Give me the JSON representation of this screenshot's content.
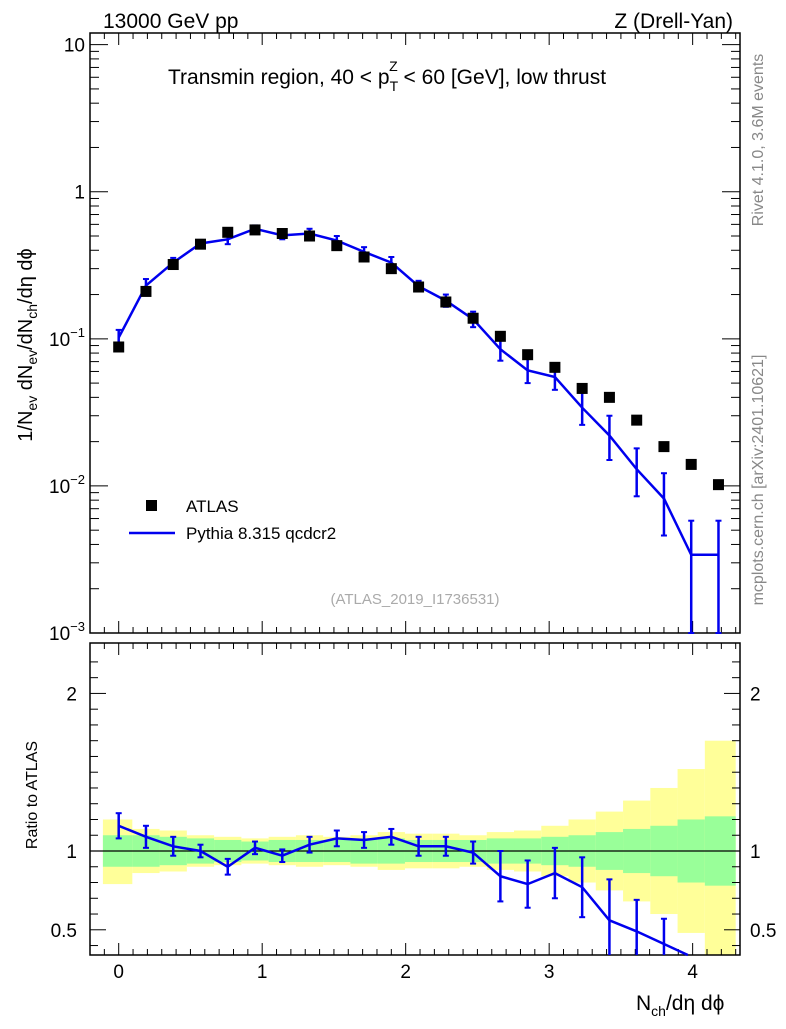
{
  "header": {
    "left": "13000 GeV pp",
    "right": "Z (Drell-Yan)"
  },
  "side_labels": {
    "rivet": "Rivet 4.1.0,  3.6M events",
    "mcplots": "mcplots.cern.ch [arXiv:2401.10621]"
  },
  "chart_data": [
    {
      "type": "scatter",
      "title_parts": {
        "pre": "Transmin region, 40 < p",
        "sub": "T",
        "sup": "Z",
        "post": " < 60 [GeV], low thrust"
      },
      "watermark": "(ATLAS_2019_I1736531)",
      "yscale": "log",
      "ylim": [
        0.001,
        12
      ],
      "xlim": [
        -0.2,
        4.33
      ],
      "ylabel": "1/N_ev dN_ev/dN_ch/dη dϕ",
      "yticks": [
        {
          "v": 10,
          "mant": "10",
          "exp": ""
        },
        {
          "v": 1,
          "mant": "1",
          "exp": ""
        },
        {
          "v": 0.1,
          "mant": "10",
          "exp": "−1"
        },
        {
          "v": 0.01,
          "mant": "10",
          "exp": "−2"
        },
        {
          "v": 0.001,
          "mant": "10",
          "exp": "−3"
        }
      ],
      "legend": {
        "atlas": "ATLAS",
        "pythia": "Pythia 8.315 qcdcr2",
        "position": "bottom-left"
      },
      "x": [
        0,
        0.19,
        0.38,
        0.57,
        0.76,
        0.95,
        1.14,
        1.33,
        1.52,
        1.71,
        1.9,
        2.09,
        2.28,
        2.47,
        2.66,
        2.85,
        3.04,
        3.23,
        3.42,
        3.61,
        3.8,
        3.99,
        4.18
      ],
      "series": [
        {
          "name": "ATLAS",
          "style": "markers",
          "color": "#000000",
          "values": [
            0.088,
            0.21,
            0.32,
            0.44,
            0.53,
            0.55,
            0.52,
            0.5,
            0.43,
            0.36,
            0.3,
            0.225,
            0.178,
            0.138,
            0.104,
            0.078,
            0.064,
            0.046,
            0.04,
            0.028,
            0.0185,
            0.014,
            0.0102
          ]
        },
        {
          "name": "Pythia 8.315 qcdcr2",
          "style": "line",
          "color": "#0000ee",
          "values": [
            0.102,
            0.23,
            0.33,
            0.445,
            0.475,
            0.56,
            0.505,
            0.52,
            0.465,
            0.39,
            0.33,
            0.228,
            0.182,
            0.136,
            0.085,
            0.061,
            0.055,
            0.034,
            0.022,
            0.013,
            0.0082,
            0.0034,
            0.0034
          ],
          "err_low": [
            0.09,
            0.205,
            0.305,
            0.42,
            0.44,
            0.53,
            0.475,
            0.48,
            0.43,
            0.36,
            0.3,
            0.21,
            0.165,
            0.12,
            0.071,
            0.05,
            0.045,
            0.026,
            0.015,
            0.0085,
            0.0046,
            0.001,
            0.001
          ],
          "err_high": [
            0.115,
            0.255,
            0.355,
            0.47,
            0.51,
            0.59,
            0.535,
            0.56,
            0.5,
            0.42,
            0.36,
            0.248,
            0.2,
            0.153,
            0.1,
            0.073,
            0.066,
            0.043,
            0.03,
            0.018,
            0.0122,
            0.0058,
            0.0058
          ]
        }
      ]
    },
    {
      "type": "line",
      "ylabel": "Ratio to ATLAS",
      "ylim": [
        0.34,
        2.32
      ],
      "xlim": [
        -0.2,
        4.33
      ],
      "yticks": [
        0.5,
        1,
        2
      ],
      "ytick_labels": [
        "0.5",
        "1",
        "2"
      ],
      "xticks": [
        0,
        1,
        2,
        3,
        4
      ],
      "xtick_labels": [
        "0",
        "1",
        "2",
        "3",
        "4"
      ],
      "xlabel_parts": {
        "pre": "N",
        "sub": "ch",
        "post": "/dη dϕ"
      },
      "bin_edges": [
        -0.11,
        0.095,
        0.285,
        0.475,
        0.665,
        0.855,
        1.045,
        1.235,
        1.425,
        1.615,
        1.805,
        1.995,
        2.185,
        2.375,
        2.565,
        2.755,
        2.945,
        3.135,
        3.325,
        3.515,
        3.705,
        3.895,
        4.085,
        4.3
      ],
      "band_inner": {
        "name": "ATLAS stat",
        "color": "#99ff99",
        "low": [
          0.9,
          0.9,
          0.91,
          0.92,
          0.93,
          0.94,
          0.93,
          0.93,
          0.93,
          0.92,
          0.92,
          0.93,
          0.93,
          0.93,
          0.92,
          0.92,
          0.91,
          0.9,
          0.88,
          0.86,
          0.84,
          0.8,
          0.78
        ],
        "high": [
          1.1,
          1.1,
          1.09,
          1.08,
          1.07,
          1.06,
          1.07,
          1.07,
          1.07,
          1.08,
          1.08,
          1.07,
          1.07,
          1.07,
          1.08,
          1.08,
          1.09,
          1.1,
          1.12,
          1.14,
          1.16,
          1.2,
          1.22
        ]
      },
      "band_outer": {
        "name": "ATLAS total",
        "color": "#ffff99",
        "low": [
          0.79,
          0.86,
          0.87,
          0.9,
          0.91,
          0.92,
          0.91,
          0.9,
          0.91,
          0.9,
          0.88,
          0.89,
          0.89,
          0.9,
          0.88,
          0.87,
          0.84,
          0.8,
          0.75,
          0.68,
          0.6,
          0.48,
          0.3
        ],
        "high": [
          1.2,
          1.14,
          1.13,
          1.1,
          1.09,
          1.08,
          1.09,
          1.1,
          1.09,
          1.1,
          1.12,
          1.11,
          1.11,
          1.1,
          1.12,
          1.13,
          1.16,
          1.2,
          1.25,
          1.32,
          1.4,
          1.52,
          1.7
        ]
      },
      "x": [
        0,
        0.19,
        0.38,
        0.57,
        0.76,
        0.95,
        1.14,
        1.33,
        1.52,
        1.71,
        1.9,
        2.09,
        2.28,
        2.47,
        2.66,
        2.85,
        3.04,
        3.23,
        3.42,
        3.61,
        3.8
      ],
      "series": [
        {
          "name": "Pythia 8.315 qcdcr2 / ATLAS",
          "color": "#0000ee",
          "values": [
            1.16,
            1.09,
            1.03,
            1.0,
            0.9,
            1.02,
            0.97,
            1.04,
            1.08,
            1.07,
            1.09,
            1.03,
            1.03,
            0.99,
            0.84,
            0.79,
            0.86,
            0.77,
            0.56,
            0.49,
            0.41
          ],
          "err_low": [
            1.08,
            1.02,
            0.97,
            0.96,
            0.85,
            0.98,
            0.93,
            0.99,
            1.03,
            1.02,
            1.04,
            0.97,
            0.97,
            0.92,
            0.68,
            0.64,
            0.7,
            0.58,
            0.3,
            0.3,
            0.3
          ],
          "err_high": [
            1.24,
            1.16,
            1.09,
            1.04,
            0.95,
            1.06,
            1.01,
            1.09,
            1.13,
            1.12,
            1.14,
            1.09,
            1.09,
            1.06,
            1.0,
            0.94,
            1.02,
            0.96,
            0.82,
            0.69,
            0.57
          ]
        }
      ]
    }
  ]
}
